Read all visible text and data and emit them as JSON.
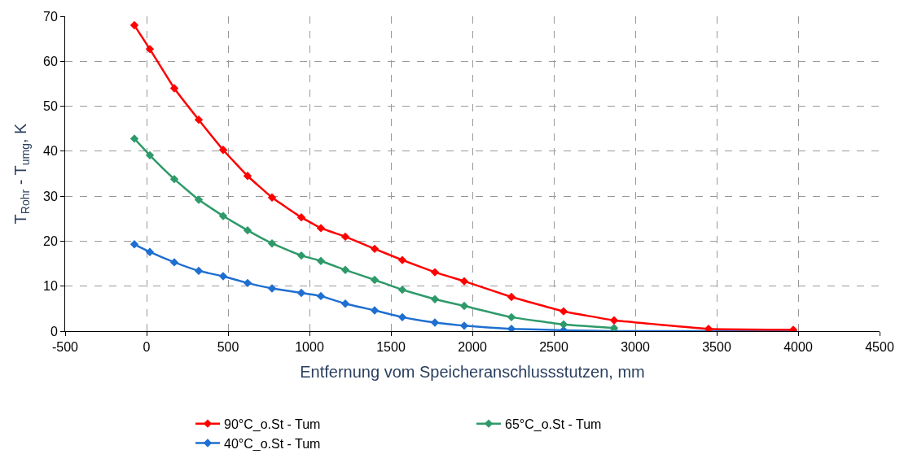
{
  "chart_data": {
    "type": "line",
    "xlabel": "Entfernung vom Speicheranschlussstutzen, mm",
    "ylabel": "T$_{Rohr}$ - T$_{umg}$, K",
    "x": [
      -75,
      20,
      170,
      320,
      470,
      620,
      770,
      950,
      1070,
      1220,
      1400,
      1570,
      1770,
      1950,
      2240,
      2560,
      2870,
      3450,
      3970
    ],
    "series": [
      {
        "name": "90°C_o.St - Tum",
        "color": "#ff0000",
        "values": [
          68,
          62.7,
          54,
          47,
          40.3,
          34.5,
          29.7,
          25.3,
          22.9,
          21,
          18.3,
          15.8,
          13.1,
          11.1,
          7.6,
          4.4,
          2.4,
          0.5,
          0.3
        ]
      },
      {
        "name": "65°C_o.St - Tum",
        "color": "#2e9a6a",
        "values": [
          42.8,
          39.1,
          33.8,
          29.2,
          25.6,
          22.4,
          19.5,
          16.8,
          15.6,
          13.6,
          11.4,
          9.2,
          7.1,
          5.6,
          3.1,
          1.5,
          0.7,
          null,
          null
        ]
      },
      {
        "name": "40°C_o.St - Tum",
        "color": "#1f6fd1",
        "values": [
          19.3,
          17.6,
          15.3,
          13.4,
          12.2,
          10.7,
          9.5,
          8.5,
          7.8,
          6.1,
          4.6,
          3.1,
          1.9,
          1.2,
          0.5,
          0.2,
          0,
          0,
          0
        ]
      }
    ],
    "xlim": [
      -500,
      4500
    ],
    "xticks": [
      -500,
      0,
      500,
      1000,
      1500,
      2000,
      2500,
      3000,
      3500,
      4000,
      4500
    ],
    "ylim": [
      0,
      70
    ],
    "yticks": [
      0,
      10,
      20,
      30,
      40,
      50,
      60,
      70
    ],
    "grid": true,
    "legend": "bottom",
    "marker": "diamond",
    "line_style": "solid"
  }
}
